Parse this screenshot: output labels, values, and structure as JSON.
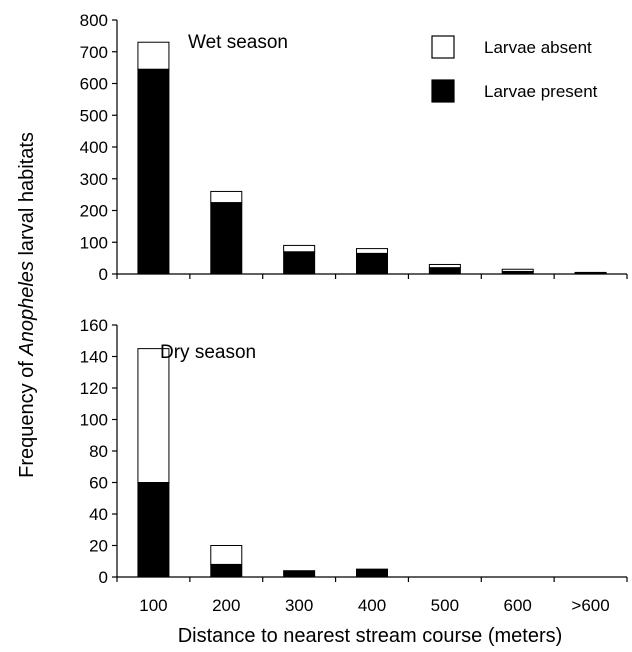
{
  "chart_data": [
    {
      "type": "bar",
      "stacked": true,
      "title": "Wet season",
      "categories": [
        "100",
        "200",
        "300",
        "400",
        "500",
        "600",
        ">600"
      ],
      "ylim": [
        0,
        800
      ],
      "yticks": [
        0,
        100,
        200,
        300,
        400,
        500,
        600,
        700,
        800
      ],
      "series": [
        {
          "name": "Larvae present",
          "color": "#000000",
          "values": [
            645,
            225,
            70,
            65,
            20,
            8,
            3
          ]
        },
        {
          "name": "Larvae absent",
          "color": "#ffffff",
          "values": [
            85,
            35,
            20,
            15,
            10,
            7,
            2
          ]
        }
      ],
      "legend": {
        "position": "top-right",
        "entries": [
          "Larvae absent",
          "Larvae present"
        ]
      }
    },
    {
      "type": "bar",
      "stacked": true,
      "title": "Dry season",
      "categories": [
        "100",
        "200",
        "300",
        "400",
        "500",
        "600",
        ">600"
      ],
      "ylim": [
        0,
        160
      ],
      "yticks": [
        0,
        20,
        40,
        60,
        80,
        100,
        120,
        140,
        160
      ],
      "series": [
        {
          "name": "Larvae present",
          "color": "#000000",
          "values": [
            60,
            8,
            4,
            5,
            0,
            0,
            0
          ]
        },
        {
          "name": "Larvae absent",
          "color": "#ffffff",
          "values": [
            85,
            12,
            0,
            0,
            0,
            0,
            0
          ]
        }
      ]
    }
  ],
  "axes": {
    "ylabel_prefix": "Frequency of ",
    "ylabel_italic": "Anopheles",
    "ylabel_suffix": " larval habitats",
    "xlabel": "Distance to nearest stream course (meters)"
  }
}
